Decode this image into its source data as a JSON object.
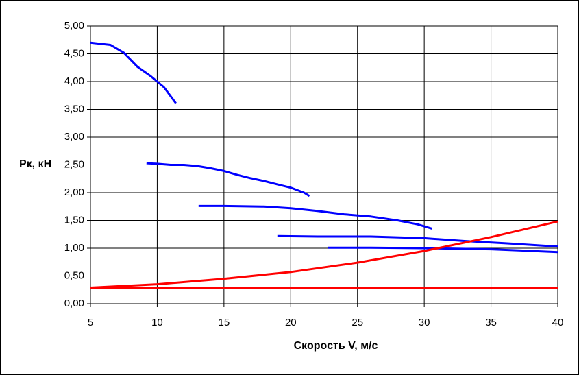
{
  "chart_data": {
    "type": "line",
    "xlabel": "Скорость V, м/с",
    "ylabel": "Рк, кН",
    "xlim": [
      5,
      40
    ],
    "xticks": [
      5,
      10,
      15,
      20,
      25,
      30,
      35,
      40
    ],
    "ylim": [
      0,
      5
    ],
    "yticks": [
      {
        "value": 0,
        "label": "0,00"
      },
      {
        "value": 0.5,
        "label": "0,50"
      },
      {
        "value": 1,
        "label": "1,00"
      },
      {
        "value": 1.5,
        "label": "1,50"
      },
      {
        "value": 2,
        "label": "2,00"
      },
      {
        "value": 2.5,
        "label": "2,50"
      },
      {
        "value": 3,
        "label": "3,00"
      },
      {
        "value": 3.5,
        "label": "3,50"
      },
      {
        "value": 4,
        "label": "4,00"
      },
      {
        "value": 4.5,
        "label": "4,50"
      },
      {
        "value": 5,
        "label": "5,00"
      }
    ],
    "grid": true,
    "series": [
      {
        "color": "#0000ff",
        "x": [
          5,
          6.5,
          7.5,
          8.5,
          9.5,
          10.5,
          11.4
        ],
        "values": [
          4.7,
          4.66,
          4.52,
          4.27,
          4.1,
          3.9,
          3.61
        ]
      },
      {
        "color": "#0000ff",
        "x": [
          9.2,
          10,
          11,
          12,
          13,
          14,
          15,
          16,
          17,
          18,
          19,
          20,
          21,
          21.4
        ],
        "values": [
          2.53,
          2.52,
          2.5,
          2.5,
          2.48,
          2.44,
          2.39,
          2.32,
          2.26,
          2.21,
          2.15,
          2.09,
          2.0,
          1.94
        ]
      },
      {
        "color": "#0000ff",
        "x": [
          13.1,
          15,
          18,
          20,
          22,
          24,
          26,
          28,
          29.5,
          30.6
        ],
        "values": [
          1.76,
          1.76,
          1.75,
          1.72,
          1.67,
          1.61,
          1.57,
          1.5,
          1.43,
          1.35
        ]
      },
      {
        "color": "#0000ff",
        "x": [
          19,
          22,
          26,
          30,
          33,
          36,
          40
        ],
        "values": [
          1.22,
          1.21,
          1.21,
          1.18,
          1.13,
          1.09,
          1.03
        ]
      },
      {
        "color": "#0000ff",
        "x": [
          22.8,
          26,
          30,
          35,
          40
        ],
        "values": [
          1.01,
          1.01,
          1.0,
          0.98,
          0.93
        ]
      },
      {
        "color": "#ff0000",
        "x": [
          5,
          10,
          15,
          20,
          25,
          30,
          35,
          40
        ],
        "values": [
          0.29,
          0.35,
          0.45,
          0.57,
          0.74,
          0.95,
          1.2,
          1.48
        ]
      },
      {
        "color": "#ff0000",
        "x": [
          5,
          40
        ],
        "values": [
          0.28,
          0.28
        ]
      }
    ]
  }
}
